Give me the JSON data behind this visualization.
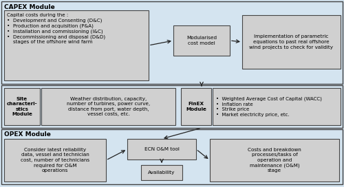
{
  "bg_color": "#d4e4f0",
  "box_fill": "#d0d0d0",
  "box_edge": "#444444",
  "sec_edge": "#444444",
  "title_fontsize": 6.5,
  "body_fontsize": 5.2,
  "capex_title": "CAPEX Module",
  "capex_left_text": "Capital costs during the :\n•  Development and Consenting (D&C)\n•  Production and acquisition (P&A)\n•  Installation and commissioning (I&C)\n•  Decommissioning and disposal (D&D)\n    stages of the offshore wind farm",
  "capex_mid_text": "Modularised\ncost model",
  "capex_right_text": "Implementation of parametric\nequations to past real offshore\nwind projects to check for validity",
  "site_label": "Site\ncharacteri-\nstics\nModule",
  "site_text": "Weather distribution, capacity,\nnumber of turbines, power curve,\ndistance from port, water depth,\nvessel costs, etc.",
  "finex_label": "FinEX\nModule",
  "finex_text": "•  Weighted Average Cost of Capital (WACC)\n•  Inflation rate\n•  Strike price\n•  Market electricity price, etc.",
  "opex_title": "OPEX Module",
  "opex_left_text": "Consider latest reliability\ndata, vessel and technician\ncost, number of technicians\nrequired for O&M\noperations",
  "opex_mid_text": "ECN O&M tool",
  "opex_avail_text": "Availability",
  "opex_right_text": "Costs and breakdown\nprocesses/tasks of\noperation and\nmaintenance (O&M)\nstage"
}
